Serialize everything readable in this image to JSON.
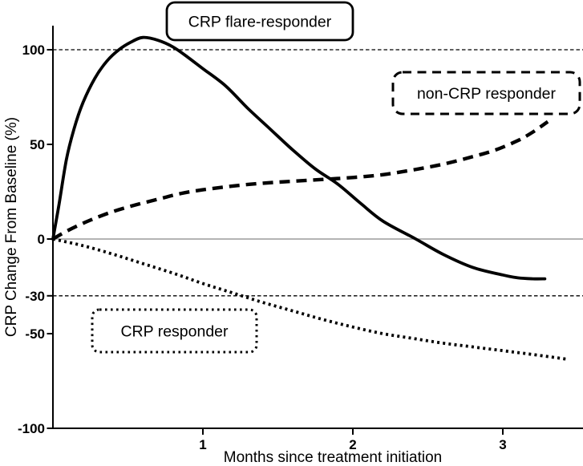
{
  "figure": {
    "background": "#ffffff",
    "ink_color": "#000000",
    "zero_line_color": "#9b9b9b"
  },
  "chart_data": {
    "type": "line",
    "title": "",
    "xlabel": "Months since treatment initiation",
    "ylabel": "CRP Change From Baseline (%)",
    "xlim": [
      0,
      3.55
    ],
    "ylim": [
      -100,
      125
    ],
    "grid": false,
    "legend_position": "inline boxed labels",
    "x_ticks": [
      {
        "value": 1,
        "label": "1"
      },
      {
        "value": 2,
        "label": "2"
      },
      {
        "value": 3,
        "label": "3"
      }
    ],
    "y_ticks": [
      {
        "value": 100,
        "label": "100"
      },
      {
        "value": 50,
        "label": "50"
      },
      {
        "value": 0,
        "label": "0"
      },
      {
        "value": -30,
        "label": "-30"
      },
      {
        "value": -50,
        "label": "-50"
      },
      {
        "value": -100,
        "label": "-100"
      }
    ],
    "reference_lines": [
      {
        "y": 100,
        "style": "dashed"
      },
      {
        "y": 0,
        "style": "solid-gray"
      },
      {
        "y": -30,
        "style": "dashed"
      }
    ],
    "series": [
      {
        "id": "flare",
        "name": "CRP flare-responder",
        "style": "solid",
        "points": [
          [
            0,
            0
          ],
          [
            0.04,
            18
          ],
          [
            0.09,
            42
          ],
          [
            0.14,
            58
          ],
          [
            0.2,
            72
          ],
          [
            0.28,
            85
          ],
          [
            0.36,
            94
          ],
          [
            0.44,
            100
          ],
          [
            0.52,
            104
          ],
          [
            0.6,
            106.5
          ],
          [
            0.7,
            105
          ],
          [
            0.8,
            101.5
          ],
          [
            0.9,
            96
          ],
          [
            1.0,
            90
          ],
          [
            1.15,
            81
          ],
          [
            1.3,
            69
          ],
          [
            1.45,
            58
          ],
          [
            1.6,
            47
          ],
          [
            1.75,
            37
          ],
          [
            1.9,
            29
          ],
          [
            2.05,
            19
          ],
          [
            2.2,
            9.5
          ],
          [
            2.42,
            0
          ],
          [
            2.6,
            -8
          ],
          [
            2.8,
            -15
          ],
          [
            3.0,
            -19
          ],
          [
            3.1,
            -20.5
          ],
          [
            3.2,
            -21
          ],
          [
            3.28,
            -21
          ]
        ]
      },
      {
        "id": "non_crp",
        "name": "non-CRP responder",
        "style": "dashed",
        "points": [
          [
            0,
            0
          ],
          [
            0.1,
            4.5
          ],
          [
            0.25,
            10
          ],
          [
            0.4,
            14.5
          ],
          [
            0.55,
            18
          ],
          [
            0.7,
            21
          ],
          [
            0.85,
            24
          ],
          [
            1.0,
            26
          ],
          [
            1.2,
            28
          ],
          [
            1.4,
            29.5
          ],
          [
            1.6,
            30.5
          ],
          [
            1.8,
            31.5
          ],
          [
            2.0,
            32.5
          ],
          [
            2.2,
            34
          ],
          [
            2.4,
            36.5
          ],
          [
            2.6,
            39.5
          ],
          [
            2.8,
            43.5
          ],
          [
            2.95,
            47
          ],
          [
            3.1,
            52
          ],
          [
            3.2,
            56.5
          ],
          [
            3.3,
            62
          ]
        ]
      },
      {
        "id": "responder",
        "name": "CRP responder",
        "style": "dotted",
        "points": [
          [
            0,
            0
          ],
          [
            0.2,
            -3.5
          ],
          [
            0.4,
            -8
          ],
          [
            0.6,
            -13
          ],
          [
            0.8,
            -18
          ],
          [
            1.0,
            -23.5
          ],
          [
            1.2,
            -28.5
          ],
          [
            1.4,
            -33.5
          ],
          [
            1.6,
            -38
          ],
          [
            1.8,
            -42.5
          ],
          [
            2.0,
            -46.5
          ],
          [
            2.2,
            -50
          ],
          [
            2.4,
            -52.5
          ],
          [
            2.6,
            -55
          ],
          [
            2.8,
            -57
          ],
          [
            3.0,
            -59
          ],
          [
            3.2,
            -61
          ],
          [
            3.43,
            -63.5
          ]
        ]
      }
    ],
    "annotations": [
      {
        "id": "flare",
        "text": "CRP flare-responder",
        "border": "solid"
      },
      {
        "id": "non_crp",
        "text": "non-CRP responder",
        "border": "dashed"
      },
      {
        "id": "responder",
        "text": "CRP responder",
        "border": "dotted"
      }
    ]
  }
}
